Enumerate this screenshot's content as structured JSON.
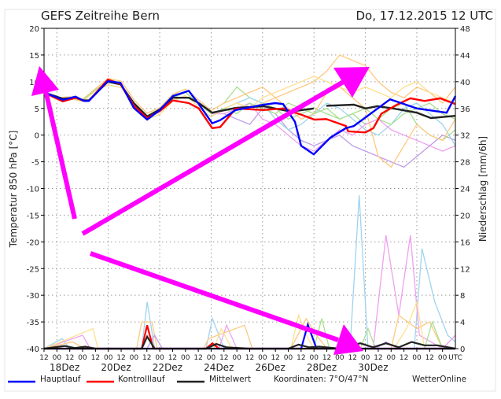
{
  "header": {
    "title": "GEFS Zeitreihe Bern",
    "run": "Do, 17.12.2015 12 UTC"
  },
  "footer": {
    "coords": "Koordinaten: 7°O/47°N",
    "brand": "WetterOnline"
  },
  "colors": {
    "haupt": "#0000ff",
    "kontroll": "#ff0000",
    "mittel": "#222222",
    "arrow": "#ff00ff",
    "members": [
      "#ffc880",
      "#c09ae6",
      "#a8e090",
      "#9fd4f0",
      "#f0a0f0",
      "#ffc880",
      "#ffe090",
      "#a8e090"
    ]
  },
  "chart_data": {
    "type": "line",
    "title": "GEFS Zeitreihe Bern",
    "ylabel": "Temperatur 850 hPa [°C]",
    "y2label": "Niederschlag [mm/6h]",
    "ylim": [
      -40,
      20
    ],
    "y2lim": [
      0,
      48
    ],
    "yticks": [
      "20",
      "15",
      "10",
      "5",
      "0",
      "-5",
      "-10",
      "-15",
      "-20",
      "-25",
      "-30",
      "-35",
      "-40"
    ],
    "y2ticks": [
      "48",
      "44",
      "40",
      "36",
      "32",
      "28",
      "24",
      "20",
      "16",
      "12",
      "8",
      "4",
      "0"
    ],
    "xlim_days": [
      0,
      16
    ],
    "xtick_labels": [
      "12",
      "00",
      "12",
      "00",
      "12",
      "00",
      "12",
      "00",
      "12",
      "00",
      "12",
      "00",
      "12",
      "00",
      "12",
      "00",
      "12",
      "00",
      "12",
      "00",
      "12",
      "00",
      "12",
      "00",
      "12",
      "00",
      "12",
      "00",
      "12",
      "00",
      "12",
      "00",
      "UTC"
    ],
    "date_labels": [
      "18Dez",
      "20Dez",
      "22Dez",
      "24Dez",
      "26Dez",
      "28Dez",
      "30Dez"
    ],
    "legend": [
      "Hauptlauf",
      "Kontrolllauf",
      "Mittelwert"
    ],
    "temperature": {
      "hauptlauf": [
        [
          0,
          8.0
        ],
        [
          0.73,
          6.6
        ],
        [
          1.22,
          7.2
        ],
        [
          1.56,
          6.4
        ],
        [
          1.74,
          6.4
        ],
        [
          2.48,
          10.1
        ],
        [
          2.97,
          9.8
        ],
        [
          3.49,
          5.1
        ],
        [
          4.01,
          2.9
        ],
        [
          4.5,
          4.7
        ],
        [
          5.01,
          7.3
        ],
        [
          5.63,
          8.3
        ],
        [
          6.02,
          5.8
        ],
        [
          6.54,
          2.2
        ],
        [
          6.85,
          2.8
        ],
        [
          7.46,
          4.7
        ],
        [
          8.53,
          5.7
        ],
        [
          9.0,
          6.0
        ],
        [
          9.3,
          5.8
        ],
        [
          9.76,
          2.5
        ],
        [
          10.0,
          -2.0
        ],
        [
          10.49,
          -3.6
        ],
        [
          11.13,
          -0.5
        ],
        [
          11.74,
          1.3
        ],
        [
          12.05,
          1.7
        ],
        [
          13.46,
          6.7
        ],
        [
          14.5,
          5.0
        ],
        [
          15.66,
          4.2
        ],
        [
          16,
          7.3
        ]
      ],
      "kontrolllauf": [
        [
          0,
          8.0
        ],
        [
          0.73,
          6.3
        ],
        [
          1.22,
          7.0
        ],
        [
          1.56,
          6.4
        ],
        [
          1.74,
          6.4
        ],
        [
          2.48,
          10.4
        ],
        [
          2.97,
          9.6
        ],
        [
          3.49,
          5.5
        ],
        [
          4.01,
          3.2
        ],
        [
          4.5,
          4.5
        ],
        [
          5.01,
          6.5
        ],
        [
          5.63,
          6.0
        ],
        [
          6.02,
          5.0
        ],
        [
          6.54,
          1.3
        ],
        [
          6.85,
          1.5
        ],
        [
          7.46,
          5.0
        ],
        [
          8.53,
          4.7
        ],
        [
          9.3,
          5.0
        ],
        [
          9.9,
          4.0
        ],
        [
          10.52,
          2.9
        ],
        [
          10.98,
          3.0
        ],
        [
          11.74,
          1.7
        ],
        [
          11.83,
          0.7
        ],
        [
          12.5,
          0.5
        ],
        [
          12.81,
          1.3
        ],
        [
          13.12,
          4.0
        ],
        [
          13.73,
          5.7
        ],
        [
          14.25,
          6.9
        ],
        [
          14.8,
          6.4
        ],
        [
          15.41,
          6.9
        ],
        [
          16,
          5.8
        ]
      ],
      "mittelwert": [
        [
          0,
          8.0
        ],
        [
          0.73,
          6.8
        ],
        [
          1.22,
          7.0
        ],
        [
          1.56,
          6.5
        ],
        [
          1.74,
          6.5
        ],
        [
          2.48,
          10.0
        ],
        [
          2.97,
          9.5
        ],
        [
          3.49,
          6.0
        ],
        [
          4.01,
          3.5
        ],
        [
          4.5,
          4.8
        ],
        [
          5.01,
          7.0
        ],
        [
          5.63,
          7.0
        ],
        [
          6.02,
          6.0
        ],
        [
          6.54,
          4.2
        ],
        [
          7.46,
          5.1
        ],
        [
          8.53,
          5.4
        ],
        [
          9.6,
          4.4
        ],
        [
          10.49,
          5.0
        ],
        [
          10.98,
          5.5
        ],
        [
          12.05,
          5.7
        ],
        [
          12.5,
          5.0
        ],
        [
          12.97,
          5.4
        ],
        [
          13.58,
          5.0
        ],
        [
          14.5,
          4.2
        ],
        [
          15.05,
          3.2
        ],
        [
          16,
          3.6
        ]
      ],
      "member_base": [
        8,
        6.8,
        7,
        6.5,
        8.5,
        10,
        9.5,
        6,
        3.5,
        4.5,
        7,
        8,
        6,
        4
      ],
      "members": [
        [
          5,
          6,
          5,
          6,
          7,
          8,
          9,
          10,
          12,
          15,
          14,
          13,
          10,
          8,
          7,
          9,
          8,
          6,
          9
        ],
        [
          4,
          3,
          2,
          5,
          4,
          1,
          -1,
          -2,
          -1,
          0,
          -2,
          -3,
          -4,
          -5,
          -6,
          -4,
          -2,
          0,
          -1
        ],
        [
          6,
          9,
          7,
          6,
          5,
          3,
          4,
          5,
          4,
          3,
          4,
          2,
          3,
          5,
          6,
          2,
          0,
          -1,
          1
        ],
        [
          5,
          6,
          7,
          6,
          3,
          1,
          2,
          4,
          6,
          5,
          3,
          1,
          0,
          2,
          5,
          6,
          4,
          2,
          -2
        ],
        [
          4,
          5,
          6,
          3,
          2,
          0,
          -2,
          -3,
          -1,
          1,
          0,
          2,
          3,
          1,
          0,
          -1,
          -2,
          -3,
          -2
        ],
        [
          6,
          7,
          8,
          9,
          7,
          5,
          3,
          4,
          8,
          9,
          7,
          5,
          -4,
          -6,
          -2,
          2,
          0,
          -1,
          3
        ],
        [
          5,
          6,
          5,
          7,
          8,
          9,
          10,
          11,
          10,
          9,
          8,
          9,
          8,
          7,
          9,
          10,
          8,
          7,
          6
        ],
        [
          5,
          4,
          6,
          5,
          4,
          6,
          5,
          4,
          5,
          3,
          4,
          5,
          3,
          2,
          4,
          5,
          6,
          4,
          3
        ]
      ]
    },
    "precipitation": {
      "hauptlauf": [
        [
          0,
          0
        ],
        [
          10.0,
          0
        ],
        [
          10.26,
          3.6
        ],
        [
          10.6,
          0
        ],
        [
          16,
          0
        ]
      ],
      "kontrolllauf": [
        [
          0,
          0
        ],
        [
          3.8,
          0
        ],
        [
          4.01,
          3.5
        ],
        [
          4.25,
          0
        ],
        [
          6.3,
          0
        ],
        [
          6.55,
          0.8
        ],
        [
          6.8,
          0
        ],
        [
          16,
          0
        ]
      ],
      "mittelwert": [
        [
          0,
          0
        ],
        [
          0.8,
          0.4
        ],
        [
          1.2,
          0.1
        ],
        [
          1.6,
          0.3
        ],
        [
          2,
          0
        ],
        [
          3.8,
          0
        ],
        [
          4.01,
          1.8
        ],
        [
          4.3,
          0
        ],
        [
          6.3,
          0
        ],
        [
          6.7,
          0.7
        ],
        [
          7.1,
          0.2
        ],
        [
          8,
          0
        ],
        [
          9.5,
          0
        ],
        [
          9.9,
          0.6
        ],
        [
          10.3,
          0.2
        ],
        [
          10.7,
          0.3
        ],
        [
          11.5,
          0
        ],
        [
          12.3,
          0.8
        ],
        [
          12.8,
          0.2
        ],
        [
          13.3,
          0.8
        ],
        [
          13.8,
          0.2
        ],
        [
          14.3,
          1.0
        ],
        [
          14.8,
          0.5
        ],
        [
          15.3,
          0.5
        ],
        [
          16,
          0
        ]
      ],
      "members": [
        [
          [
            0,
            0
          ],
          [
            0.7,
            1.5
          ],
          [
            1.0,
            0
          ],
          [
            3.8,
            0
          ],
          [
            4.01,
            7
          ],
          [
            4.3,
            0
          ],
          [
            6.3,
            0
          ],
          [
            6.55,
            4.5
          ],
          [
            7,
            0
          ],
          [
            11.9,
            0
          ],
          [
            12.26,
            23
          ],
          [
            12.6,
            0
          ],
          [
            14.4,
            0
          ],
          [
            14.7,
            15
          ],
          [
            15.2,
            7
          ],
          [
            15.7,
            2
          ],
          [
            16,
            1
          ]
        ],
        [
          [
            0,
            0
          ],
          [
            1.5,
            2
          ],
          [
            1.8,
            0
          ],
          [
            6.8,
            0
          ],
          [
            7.1,
            3.5
          ],
          [
            7.5,
            0
          ],
          [
            12.8,
            0
          ],
          [
            13.3,
            17
          ],
          [
            13.8,
            5
          ],
          [
            14.25,
            17
          ],
          [
            14.6,
            2
          ],
          [
            15.5,
            0
          ],
          [
            16,
            2
          ]
        ],
        [
          [
            0,
            0
          ],
          [
            1.1,
            1
          ],
          [
            1.6,
            0
          ],
          [
            3.6,
            0
          ],
          [
            3.8,
            4
          ],
          [
            4.2,
            4
          ],
          [
            4.4,
            0
          ],
          [
            6.2,
            0
          ],
          [
            6.4,
            1.5
          ],
          [
            7.8,
            3.5
          ],
          [
            8.1,
            0
          ],
          [
            13.5,
            0
          ],
          [
            13.8,
            5
          ],
          [
            14.5,
            3
          ],
          [
            15,
            4
          ],
          [
            15.5,
            0
          ],
          [
            16,
            0
          ]
        ],
        [
          [
            0,
            0
          ],
          [
            1.9,
            3
          ],
          [
            2.1,
            0
          ],
          [
            6.6,
            0
          ],
          [
            6.9,
            3
          ],
          [
            7.3,
            0
          ],
          [
            9.6,
            0
          ],
          [
            9.9,
            5
          ],
          [
            10.2,
            2
          ],
          [
            10.5,
            0
          ],
          [
            13.6,
            0
          ],
          [
            14.1,
            3
          ],
          [
            14.5,
            7
          ],
          [
            14.8,
            0
          ],
          [
            16,
            0
          ]
        ],
        [
          [
            0,
            0
          ],
          [
            10.5,
            0
          ],
          [
            10.8,
            4.5
          ],
          [
            11.1,
            0
          ],
          [
            14.8,
            0
          ],
          [
            15.1,
            4
          ],
          [
            15.5,
            0
          ],
          [
            16,
            0
          ]
        ],
        [
          [
            0,
            0
          ],
          [
            9.6,
            0
          ],
          [
            10.2,
            4.5
          ],
          [
            10.6,
            2
          ],
          [
            11,
            0
          ],
          [
            16,
            0
          ]
        ],
        [
          [
            0,
            0
          ],
          [
            4.0,
            0
          ],
          [
            4.3,
            2
          ],
          [
            4.6,
            0
          ],
          [
            12.9,
            0
          ],
          [
            13.3,
            1
          ],
          [
            13.8,
            0
          ],
          [
            16,
            0
          ]
        ],
        [
          [
            0,
            0
          ],
          [
            12.3,
            0
          ],
          [
            12.6,
            3
          ],
          [
            12.9,
            0
          ],
          [
            16,
            0
          ]
        ]
      ]
    }
  }
}
